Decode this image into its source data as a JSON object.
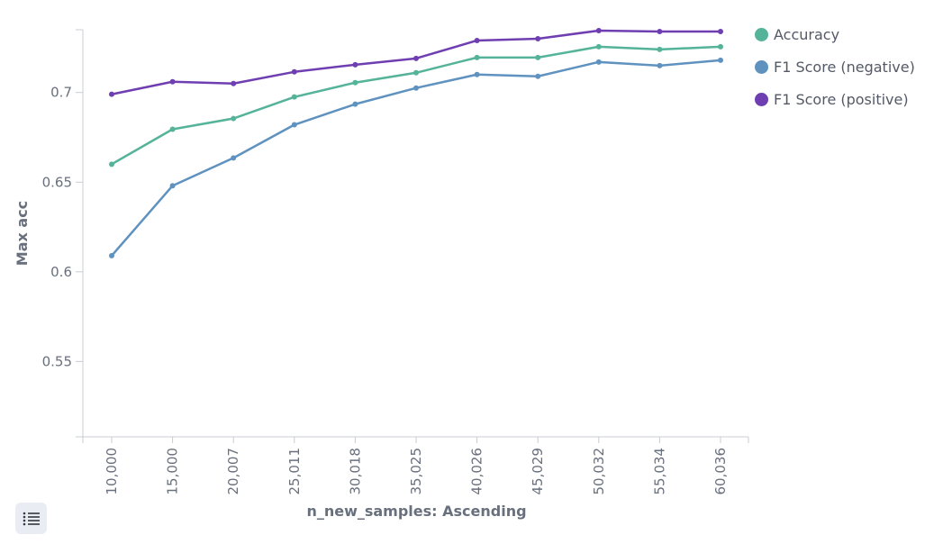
{
  "chart_data": {
    "type": "line",
    "title": "",
    "xlabel": "n_new_samples: Ascending",
    "ylabel": "Max acc",
    "categories": [
      "10,000",
      "15,000",
      "20,007",
      "25,011",
      "30,018",
      "35,025",
      "40,026",
      "45,029",
      "50,032",
      "55,034",
      "60,036"
    ],
    "yticks": [
      "0.55",
      "0.6",
      "0.65",
      "0.7"
    ],
    "ylim": [
      0.508,
      0.735
    ],
    "legend_position": "top-right",
    "grid": false,
    "series": [
      {
        "name": "Accuracy",
        "color": "#54b399",
        "values": [
          0.66,
          0.6795,
          0.6855,
          0.6975,
          0.7055,
          0.711,
          0.7195,
          0.7195,
          0.7255,
          0.724,
          0.7255
        ]
      },
      {
        "name": "F1 Score (negative)",
        "color": "#6092c0",
        "values": [
          0.609,
          0.648,
          0.6635,
          0.682,
          0.6935,
          0.7025,
          0.71,
          0.709,
          0.717,
          0.715,
          0.718
        ]
      },
      {
        "name": "F1 Score (positive)",
        "color": "#6f3fb1",
        "values": [
          0.699,
          0.706,
          0.705,
          0.7115,
          0.7155,
          0.719,
          0.729,
          0.73,
          0.7345,
          0.734,
          0.734
        ]
      }
    ]
  },
  "legend_toggle_icon": "list-icon"
}
